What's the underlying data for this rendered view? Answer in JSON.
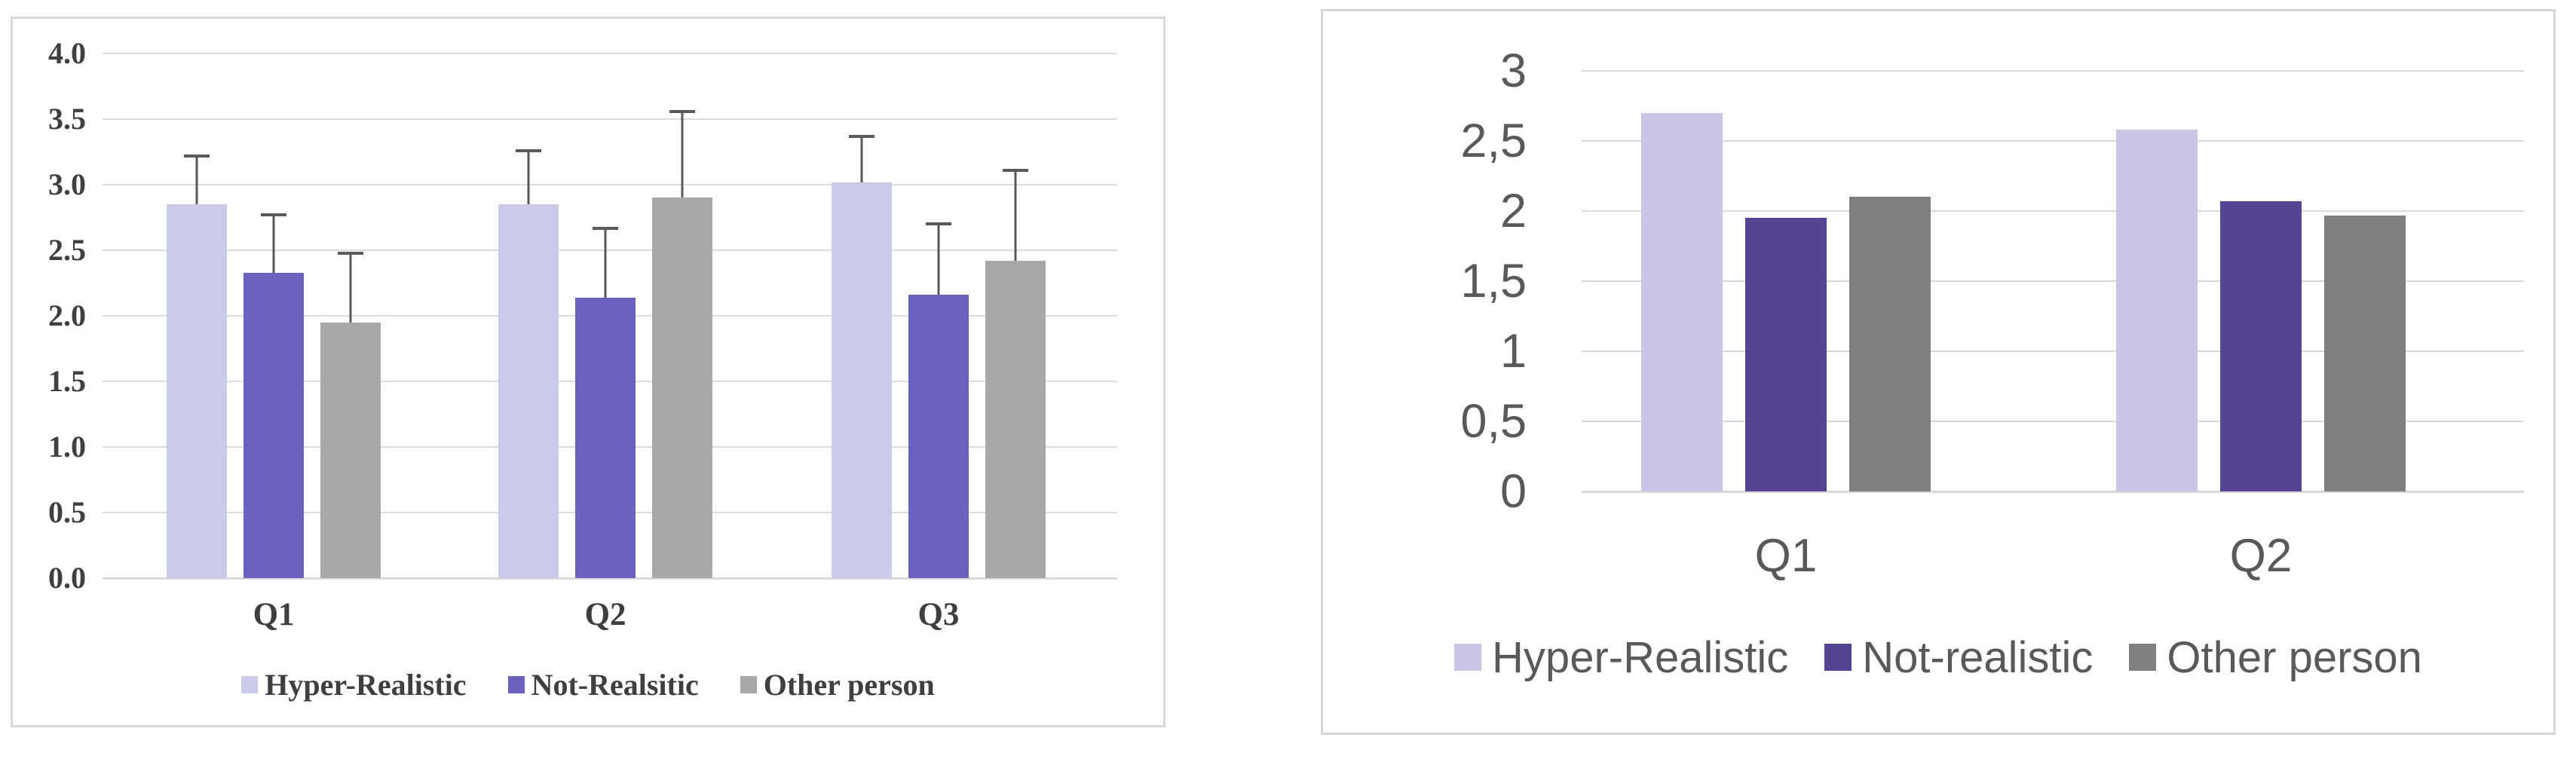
{
  "page": {
    "background": "#ffffff"
  },
  "chart_data": [
    {
      "type": "bar",
      "panel": "left",
      "title": "",
      "xlabel": "",
      "ylabel": "",
      "categories": [
        "Q1",
        "Q2",
        "Q3"
      ],
      "series": [
        {
          "name": "Hyper-Realistic",
          "color": "#c9cbe8",
          "values": [
            2.85,
            2.85,
            3.02
          ],
          "error_top": [
            3.23,
            3.27,
            3.38
          ]
        },
        {
          "name": "Not-Realsitic",
          "color": "#6a61c0",
          "values": [
            2.33,
            2.14,
            2.16
          ],
          "error_top": [
            2.78,
            2.68,
            2.71
          ]
        },
        {
          "name": "Other person",
          "color": "#a8a8a8",
          "values": [
            1.95,
            2.9,
            2.42
          ],
          "error_top": [
            2.49,
            3.57,
            3.12
          ]
        }
      ],
      "y_ticks": [
        {
          "label": "4.0",
          "value": 4.0
        },
        {
          "label": "3.5",
          "value": 3.5
        },
        {
          "label": "3.0",
          "value": 3.0
        },
        {
          "label": "2.5",
          "value": 2.5
        },
        {
          "label": "2.0",
          "value": 2.0
        },
        {
          "label": "1.5",
          "value": 1.5
        },
        {
          "label": "1.0",
          "value": 1.0
        },
        {
          "label": "0.5",
          "value": 0.5
        },
        {
          "label": "0.0",
          "value": 0.0
        }
      ],
      "ylim": [
        0,
        4
      ],
      "grid": true,
      "legend_position": "bottom",
      "error_bars": "plus-direction",
      "error_bar_color": "#595959",
      "text_color": "#3f3f3f",
      "grid_color": "#dcdcdc",
      "axis_color": "#d9d9d9",
      "border_color": "#d9d9d9"
    },
    {
      "type": "bar",
      "panel": "right",
      "title": "",
      "xlabel": "",
      "ylabel": "",
      "categories": [
        "Q1",
        "Q2"
      ],
      "series": [
        {
          "name": "Hyper-Realistic",
          "color": "#cbc5e6",
          "values": [
            2.7,
            2.58
          ]
        },
        {
          "name": "Not-realistic",
          "color": "#564393",
          "values": [
            1.95,
            2.07
          ]
        },
        {
          "name": "Other person",
          "color": "#7f7f7f",
          "values": [
            2.1,
            1.97
          ]
        }
      ],
      "y_ticks": [
        {
          "label": "3",
          "value": 3.0
        },
        {
          "label": "2,5",
          "value": 2.5
        },
        {
          "label": "2",
          "value": 2.0
        },
        {
          "label": "1,5",
          "value": 1.5
        },
        {
          "label": "1",
          "value": 1.0
        },
        {
          "label": "0,5",
          "value": 0.5
        },
        {
          "label": "0",
          "value": 0.0
        }
      ],
      "ylim": [
        0,
        3
      ],
      "grid": true,
      "legend_position": "bottom",
      "decimal_separator": "comma",
      "text_color": "#595959",
      "grid_color": "#d9d9d9",
      "axis_color": "#d9d9d9",
      "border_color": "#d6d6d6"
    }
  ]
}
